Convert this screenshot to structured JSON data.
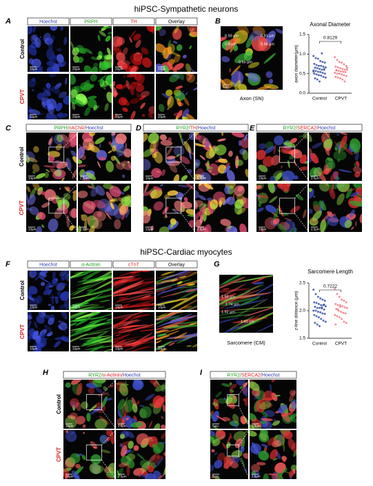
{
  "sections": [
    "hiPSC-Sympathetic neurons",
    "hiPSC-Cardiac myocytes"
  ],
  "panels": [
    {
      "letter": "A",
      "headers": [
        [
          {
            "text": "Hoechst",
            "color": "#2b3ab0"
          }
        ],
        [
          {
            "text": "PRPH",
            "color": "#18a018"
          }
        ],
        [
          {
            "text": "TH",
            "color": "#e02020"
          }
        ],
        [
          {
            "text": "Overlay",
            "color": "#000000"
          }
        ]
      ],
      "rows": [
        "Control",
        "CPVT"
      ],
      "scale_bars": [
        "20µm",
        "20µm",
        "20µm",
        "20µm"
      ]
    },
    {
      "letter": "B",
      "annotations": [
        "0.93 µm",
        "0.81 µm",
        "0.56 µm",
        "0.9 µm",
        "0.65 µm"
      ],
      "scale_bar": "5um",
      "caption": "Axon (SN)"
    },
    {
      "letter": "C",
      "headers": [
        [
          {
            "text": "PRPH/",
            "color": "#18a018"
          },
          {
            "text": "nAChR/",
            "color": "#e02020"
          },
          {
            "text": "Hoechst",
            "color": "#2b3ab0"
          }
        ]
      ],
      "rows": [
        "Control",
        "CPVT"
      ],
      "scale_bars": [
        "10µm",
        "2.5µm"
      ]
    },
    {
      "letter": "D",
      "headers": [
        [
          {
            "text": "RYR2/",
            "color": "#18a018"
          },
          {
            "text": "TH/",
            "color": "#e02020"
          },
          {
            "text": "Hoechst",
            "color": "#2b3ab0"
          }
        ]
      ],
      "scale_bars": [
        "10µm",
        "2.5µm"
      ]
    },
    {
      "letter": "E",
      "headers": [
        [
          {
            "text": "RYR2/",
            "color": "#18a018"
          },
          {
            "text": "SERCA2/",
            "color": "#e02020"
          },
          {
            "text": "Hoechst",
            "color": "#2b3ab0"
          }
        ]
      ],
      "scale_bars": [
        "10µm",
        "2.5µm"
      ]
    },
    {
      "letter": "F",
      "headers": [
        [
          {
            "text": "Hoechst",
            "color": "#2b3ab0"
          }
        ],
        [
          {
            "text": "α-Actinin",
            "color": "#18a018"
          }
        ],
        [
          {
            "text": "cTnT",
            "color": "#e02020"
          }
        ],
        [
          {
            "text": "Overlay",
            "color": "#000000"
          }
        ]
      ],
      "rows": [
        "Control",
        "CPVT"
      ],
      "scale_bars": [
        "10µm",
        "10µm",
        "10µm",
        "10µm"
      ]
    },
    {
      "letter": "G",
      "annotations": [
        "1.93 µm",
        "1.74 µm",
        "1.92 µm",
        "1.91 µm"
      ],
      "caption": "Sarcomere (CM)"
    },
    {
      "letter": "H",
      "headers": [
        [
          {
            "text": "RYR2/",
            "color": "#18a018"
          },
          {
            "text": "α-Actinin/",
            "color": "#e02020"
          },
          {
            "text": "Hoechst",
            "color": "#2b3ab0"
          }
        ]
      ],
      "rows": [
        "Control",
        "CPVT"
      ],
      "scale_bars": [
        "10µm",
        "2.5µm"
      ]
    },
    {
      "letter": "I",
      "headers": [
        [
          {
            "text": "RYR2/",
            "color": "#18a018"
          },
          {
            "text": "SERCA2/",
            "color": "#e02020"
          },
          {
            "text": "Hoechst",
            "color": "#2b3ab0"
          }
        ]
      ],
      "scale_bars": [
        "5µm",
        "2.5µm"
      ]
    }
  ],
  "chart_data": [
    {
      "type": "strip",
      "title": "Axonal Diameter",
      "ylabel": "axon diameter(μm)",
      "categories": [
        "Control",
        "CPVT"
      ],
      "colors": [
        "#3a55a8",
        "#ef7f86"
      ],
      "annotation": "0.8129",
      "values": [
        [
          0.95,
          0.9,
          0.88,
          0.82,
          0.8,
          0.78,
          0.75,
          0.72,
          0.7,
          0.7,
          0.68,
          0.66,
          0.65,
          0.64,
          0.62,
          0.6,
          0.6,
          0.58,
          0.57,
          0.55,
          0.54,
          0.52,
          0.5,
          0.5,
          0.48,
          0.46,
          0.45,
          0.42,
          0.4,
          0.38,
          0.35,
          0.3,
          1.02,
          0.62,
          0.55
        ],
        [
          0.92,
          0.85,
          0.8,
          0.78,
          0.74,
          0.7,
          0.68,
          0.66,
          0.64,
          0.62,
          0.6,
          0.6,
          0.58,
          0.57,
          0.56,
          0.55,
          0.54,
          0.52,
          0.5,
          0.5,
          0.48,
          0.46,
          0.44,
          0.42,
          0.4,
          0.38,
          0.35,
          0.3,
          0.65,
          0.59
        ]
      ],
      "ylim": [
        0,
        1.5
      ],
      "yticks": [
        {
          "value": 0,
          "label": "0.0"
        },
        {
          "value": 0.5,
          "label": "0.5"
        },
        {
          "value": 1,
          "label": "1.0"
        },
        {
          "value": 1.5,
          "label": "1.5"
        }
      ]
    },
    {
      "type": "strip",
      "title": "Sarcomere Length",
      "ylabel": "z-line distance (μm)",
      "categories": [
        "Control",
        "CPVT"
      ],
      "colors": [
        "#3a55a8",
        "#ef7f86"
      ],
      "annotation": "0.7222",
      "values": [
        [
          2.38,
          2.3,
          2.25,
          2.22,
          2.2,
          2.18,
          2.15,
          2.14,
          2.12,
          2.1,
          2.1,
          2.08,
          2.07,
          2.05,
          2.05,
          2.04,
          2.02,
          2.0,
          2.0,
          1.98,
          1.97,
          1.95,
          1.94,
          1.92,
          1.9,
          1.88,
          1.85,
          1.82,
          1.8,
          1.78,
          1.75,
          1.72,
          2.06,
          2.11
        ],
        [
          2.4,
          2.3,
          2.25,
          2.2,
          2.18,
          2.15,
          2.12,
          2.1,
          2.1,
          2.08,
          2.06,
          2.05,
          2.03,
          2.0,
          1.98,
          1.96,
          1.95,
          1.92,
          1.9,
          1.88,
          1.85,
          1.8,
          1.78,
          1.75,
          2.02,
          2.07
        ]
      ],
      "ylim": [
        1.5,
        2.5
      ],
      "yticks": [
        {
          "value": 1.5,
          "label": "1.5"
        },
        {
          "value": 2,
          "label": "2.0"
        },
        {
          "value": 2.5,
          "label": "2.5"
        }
      ]
    }
  ]
}
